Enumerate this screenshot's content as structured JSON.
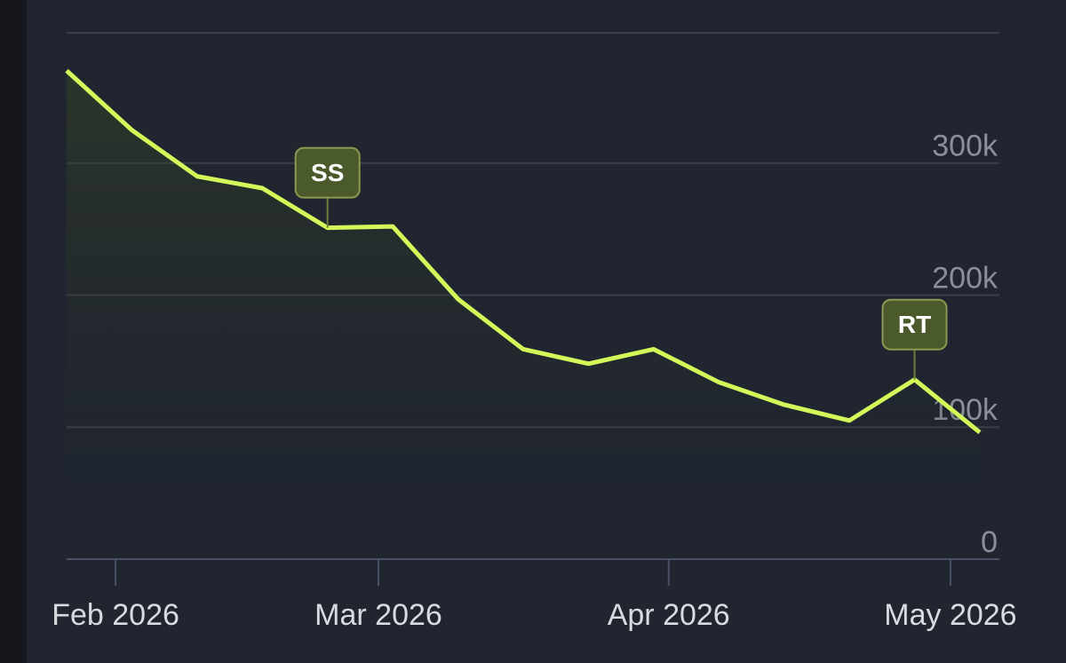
{
  "chart_data": {
    "type": "line",
    "x": [
      0,
      1,
      2,
      3,
      4,
      5,
      6,
      7,
      8,
      9,
      10,
      11,
      12,
      13,
      14
    ],
    "series": [
      {
        "color": "#d4f75a",
        "values": [
          370000,
          325000,
          290000,
          281000,
          251000,
          252000,
          197000,
          159000,
          148000,
          159000,
          134000,
          117000,
          105000,
          136000,
          96000
        ]
      }
    ],
    "xlim": [
      0,
      14.3
    ],
    "xticks": [
      {
        "value": 0.75,
        "label": "Feb 2026"
      },
      {
        "value": 4.78,
        "label": "Mar 2026"
      },
      {
        "value": 9.23,
        "label": "Apr 2026"
      },
      {
        "value": 13.55,
        "label": "May 2026"
      }
    ],
    "ylim": [
      0,
      400000
    ],
    "yticks": [
      {
        "value": 0,
        "label": "0"
      },
      {
        "value": 100000,
        "label": "100k"
      },
      {
        "value": 200000,
        "label": "200k"
      },
      {
        "value": 300000,
        "label": "300k"
      }
    ],
    "grid": true,
    "annotations": [
      {
        "label": "SS",
        "x": 4
      },
      {
        "label": "RT",
        "x": 13
      }
    ]
  }
}
